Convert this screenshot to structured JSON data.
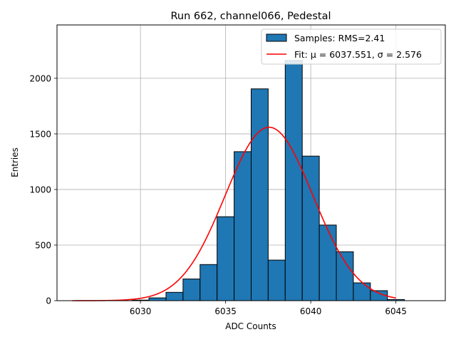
{
  "chart_data": {
    "type": "bar",
    "title": "Run 662, channel066, Pedestal",
    "xlabel": "ADC Counts",
    "ylabel": "Entries",
    "xlim": [
      6025.1,
      6047.9
    ],
    "ylim": [
      0,
      2480
    ],
    "xticks": [
      6030,
      6035,
      6040,
      6045
    ],
    "yticks": [
      0,
      500,
      1000,
      1500,
      2000
    ],
    "grid": true,
    "legend_position": "top-right",
    "bar_color": "#1f77b4",
    "fit_color": "#ff0000",
    "histogram": {
      "name": "Samples: RMS=2.41",
      "bin_width": 1,
      "bins": [
        {
          "left": 6029.5,
          "value": 5
        },
        {
          "left": 6030.5,
          "value": 25
        },
        {
          "left": 6031.5,
          "value": 75
        },
        {
          "left": 6032.5,
          "value": 195
        },
        {
          "left": 6033.5,
          "value": 325
        },
        {
          "left": 6034.5,
          "value": 755
        },
        {
          "left": 6035.5,
          "value": 1340
        },
        {
          "left": 6036.5,
          "value": 1905
        },
        {
          "left": 6037.5,
          "value": 365
        },
        {
          "left": 6038.5,
          "value": 2160
        },
        {
          "left": 6039.5,
          "value": 1300
        },
        {
          "left": 6040.5,
          "value": 680
        },
        {
          "left": 6041.5,
          "value": 440
        },
        {
          "left": 6042.5,
          "value": 160
        },
        {
          "left": 6043.5,
          "value": 90
        },
        {
          "left": 6044.5,
          "value": 10
        }
      ]
    },
    "fit": {
      "name": "Fit: μ = 6037.551, σ = 2.576",
      "mu": 6037.551,
      "sigma": 2.576,
      "amplitude": 1560,
      "x_range": [
        6026,
        6045
      ]
    }
  }
}
